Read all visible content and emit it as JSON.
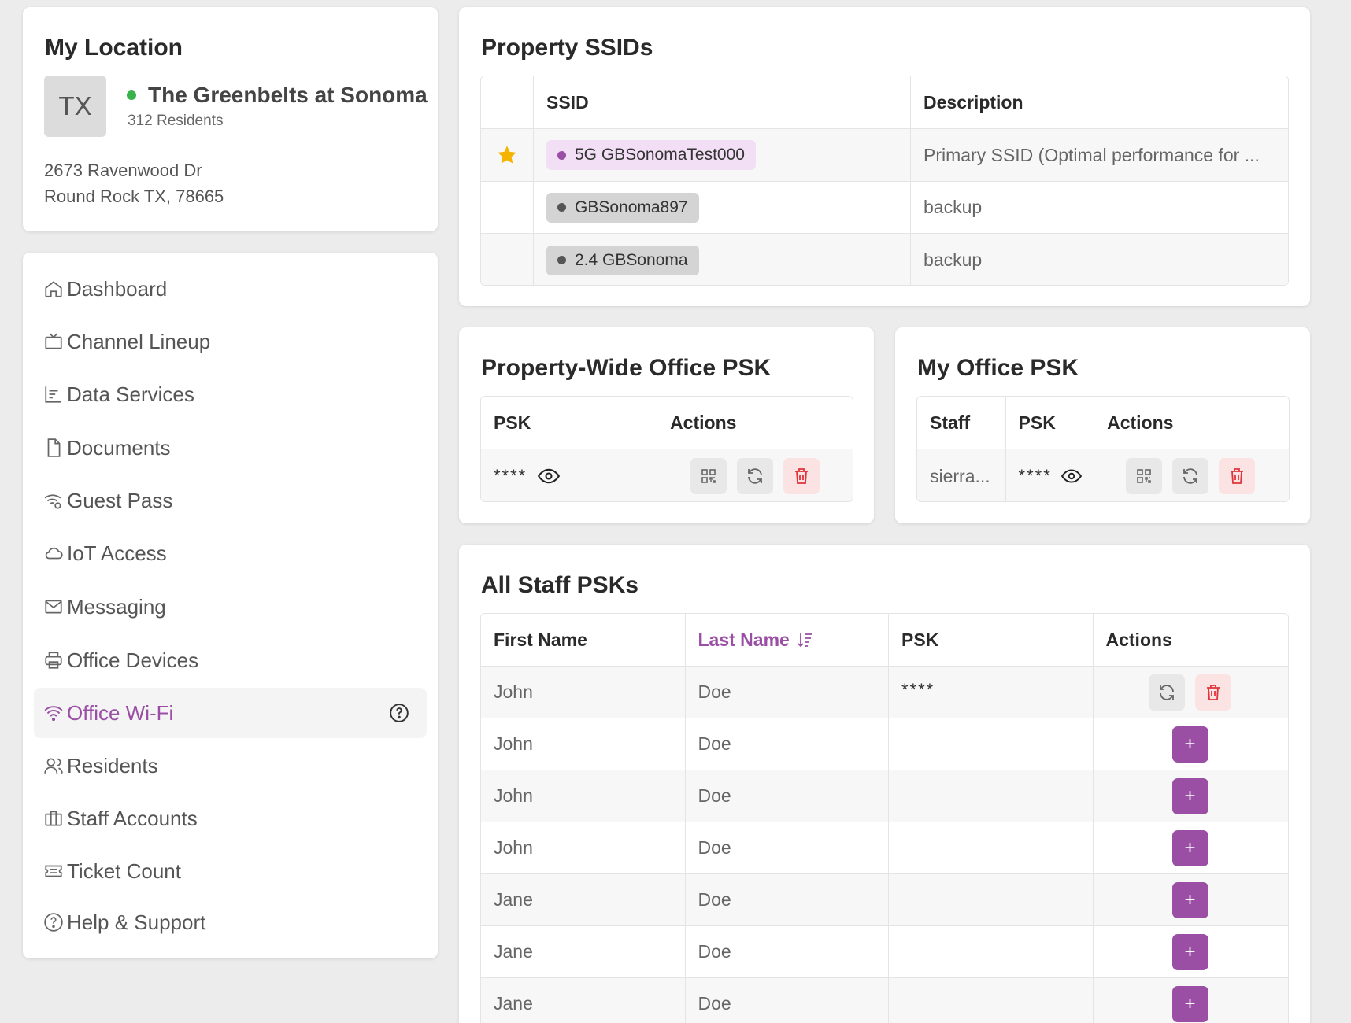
{
  "location": {
    "title": "My Location",
    "state_abbr": "TX",
    "property_name": "The Greenbelts at Sonoma",
    "residents": "312 Residents",
    "address_line1": "2673 Ravenwood Dr",
    "address_line2": "Round Rock TX, 78665"
  },
  "nav": {
    "items": [
      {
        "label": "Dashboard",
        "icon": "home-icon"
      },
      {
        "label": "Channel Lineup",
        "icon": "tv-icon"
      },
      {
        "label": "Data Services",
        "icon": "bar-chart-icon"
      },
      {
        "label": "Documents",
        "icon": "document-icon"
      },
      {
        "label": "Guest Pass",
        "icon": "wifi-gear-icon"
      },
      {
        "label": "IoT Access",
        "icon": "cloud-icon"
      },
      {
        "label": "Messaging",
        "icon": "mail-icon"
      },
      {
        "label": "Office Devices",
        "icon": "printer-icon"
      },
      {
        "label": "Office Wi-Fi",
        "icon": "wifi-icon"
      },
      {
        "label": "Residents",
        "icon": "users-icon"
      },
      {
        "label": "Staff Accounts",
        "icon": "briefcase-icon"
      },
      {
        "label": "Ticket Count",
        "icon": "ticket-icon"
      },
      {
        "label": "Help & Support",
        "icon": "question-icon"
      }
    ],
    "active": "Office Wi-Fi"
  },
  "ssids": {
    "title": "Property SSIDs",
    "headers": [
      "SSID",
      "Description"
    ],
    "rows": [
      {
        "ssid": "5G GBSonomaTest000",
        "description": "Primary SSID (Optimal performance for ...",
        "primary": true
      },
      {
        "ssid": "GBSonoma897",
        "description": "backup",
        "primary": false
      },
      {
        "ssid": "2.4 GBSonoma",
        "description": "backup",
        "primary": false
      }
    ]
  },
  "property_psk": {
    "title": "Property-Wide Office PSK",
    "headers": [
      "PSK",
      "Actions"
    ],
    "psk_masked": "****"
  },
  "my_psk": {
    "title": "My Office PSK",
    "headers": [
      "Staff",
      "PSK",
      "Actions"
    ],
    "staff": "sierra...",
    "psk_masked": "****"
  },
  "staff_psks": {
    "title": "All Staff PSKs",
    "headers": [
      "First Name",
      "Last Name",
      "PSK",
      "Actions"
    ],
    "sorted_column": "Last Name",
    "add_label": "+",
    "rows": [
      {
        "first": "John",
        "last": "Doe",
        "psk": "****"
      },
      {
        "first": "John",
        "last": "Doe",
        "psk": ""
      },
      {
        "first": "John",
        "last": "Doe",
        "psk": ""
      },
      {
        "first": "John",
        "last": "Doe",
        "psk": ""
      },
      {
        "first": "Jane",
        "last": "Doe",
        "psk": ""
      },
      {
        "first": "Jane",
        "last": "Doe",
        "psk": ""
      },
      {
        "first": "Jane",
        "last": "Doe",
        "psk": ""
      }
    ]
  },
  "colors": {
    "accent": "#9a4fa5",
    "online": "#37b34a",
    "danger": "#e0343a",
    "star": "#f5b400"
  }
}
